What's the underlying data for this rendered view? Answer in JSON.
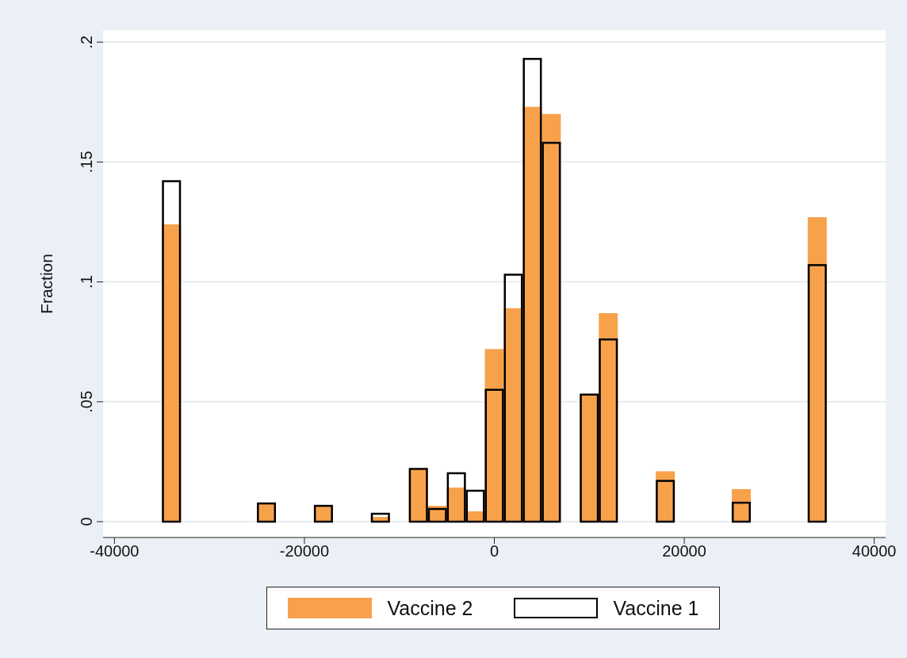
{
  "chart_data": {
    "type": "histogram",
    "ylabel": "Fraction",
    "bins": [
      -35000,
      -33000,
      -31000,
      -29000,
      -27000,
      -25000,
      -23000,
      -21000,
      -19000,
      -17000,
      -15000,
      -13000,
      -11000,
      -9000,
      -7000,
      -5000,
      -3000,
      -1000,
      1000,
      3000,
      5000,
      7000,
      9000,
      11000,
      13000,
      15000,
      17000,
      19000,
      21000,
      23000,
      25000,
      27000,
      29000,
      31000,
      33000,
      35000
    ],
    "series": [
      {
        "name": "Vaccine 2",
        "color": "#f7a24b",
        "values": [
          0.124,
          0,
          0,
          0,
          0,
          0.0076,
          0,
          0,
          0.0066,
          0,
          0,
          0.002,
          0,
          0.022,
          0.0066,
          0.0142,
          0.0043,
          0.072,
          0.089,
          0.173,
          0.17,
          0,
          0.053,
          0.087,
          0,
          0,
          0.021,
          0,
          0,
          0,
          0.0136,
          0,
          0,
          0,
          0.127
        ]
      },
      {
        "name": "Vaccine 1",
        "color": "#000000",
        "values": [
          0.142,
          0,
          0,
          0,
          0,
          0.0076,
          0,
          0,
          0.0066,
          0,
          0,
          0.0033,
          0,
          0.022,
          0.0053,
          0.0202,
          0.0129,
          0.055,
          0.103,
          0.193,
          0.158,
          0,
          0.053,
          0.076,
          0,
          0,
          0.017,
          0,
          0,
          0,
          0.0079,
          0,
          0,
          0,
          0.107
        ]
      }
    ],
    "xlim": [
      -41200,
      41200
    ],
    "xticks": [
      -40000,
      -20000,
      0,
      20000,
      40000
    ],
    "ylim": [
      -0.0066,
      0.205
    ],
    "yticks": [
      {
        "value": 0,
        "label": "0"
      },
      {
        "value": 0.05,
        "label": ".05"
      },
      {
        "value": 0.1,
        "label": ".1"
      },
      {
        "value": 0.15,
        "label": ".15"
      },
      {
        "value": 0.2,
        "label": ".2"
      }
    ],
    "grid": "y",
    "legend": "bottom"
  }
}
